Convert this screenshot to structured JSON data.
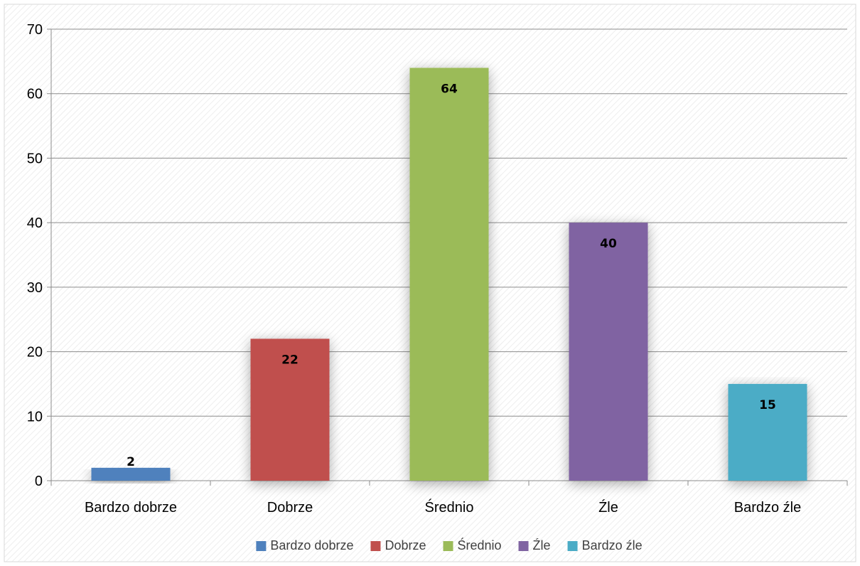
{
  "chart_data": {
    "type": "bar",
    "title": "",
    "xlabel": "",
    "ylabel": "",
    "categories": [
      "Bardzo dobrze",
      "Dobrze",
      "Średnio",
      "Źle",
      "Bardzo źle"
    ],
    "values": [
      2,
      22,
      64,
      40,
      15
    ],
    "colors": [
      "#4f81bd",
      "#c0504d",
      "#9bbb59",
      "#8064a2",
      "#4bacc6"
    ],
    "ylim": [
      0,
      70
    ],
    "yticks": [
      0,
      10,
      20,
      30,
      40,
      50,
      60,
      70
    ],
    "grid": true,
    "data_labels": true,
    "legend": {
      "placement": "bottom",
      "entries": [
        "Bardzo dobrze",
        "Dobrze",
        "Średnio",
        "Źle",
        "Bardzo źle"
      ]
    }
  }
}
